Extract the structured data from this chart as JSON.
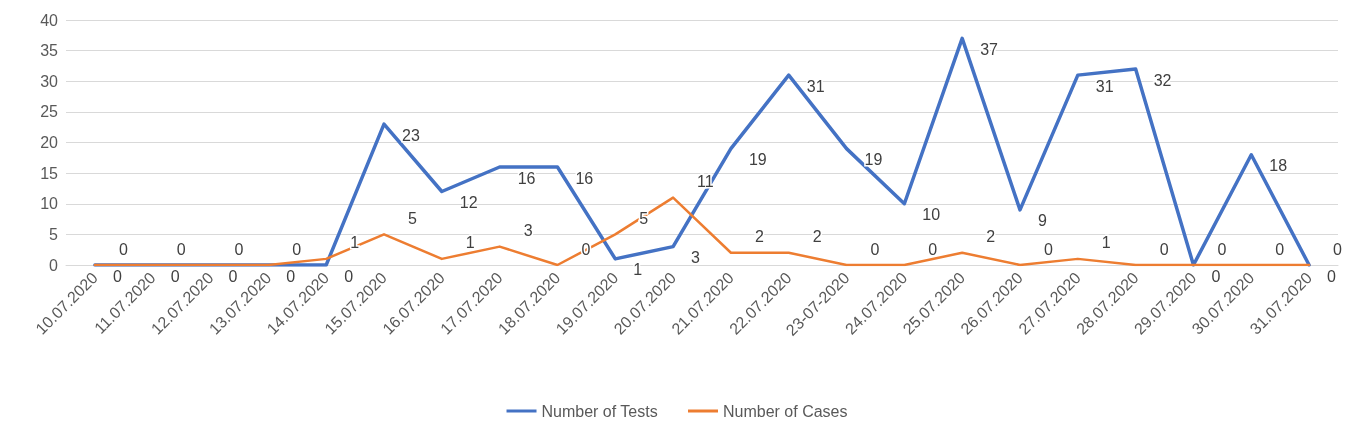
{
  "chart_data": {
    "type": "line",
    "categories": [
      "10.07.2020",
      "11.07.2020",
      "12.07.2020",
      "13.07.2020",
      "14.07.2020",
      "15.07.2020",
      "16.07.2020",
      "17.07.2020",
      "18.07.2020",
      "19.07.2020",
      "20.07.2020",
      "21.07.2020",
      "22.07.2020",
      "23-07-2020",
      "24.07.2020",
      "25.07.2020",
      "26.07.2020",
      "27.07.2020",
      "28.07.2020",
      "29.07.2020",
      "30.07.2020",
      "31.07.2020"
    ],
    "series": [
      {
        "name": "Number of Tests",
        "color": "#4472c4",
        "values": [
          0,
          0,
          0,
          0,
          0,
          23,
          12,
          16,
          16,
          1,
          3,
          19,
          31,
          19,
          10,
          37,
          9,
          31,
          32,
          0,
          18,
          0
        ]
      },
      {
        "name": "Number of Cases",
        "color": "#ed7d31",
        "values": [
          0,
          0,
          0,
          0,
          1,
          5,
          1,
          3,
          0,
          5,
          11,
          2,
          2,
          0,
          0,
          2,
          0,
          1,
          0,
          0,
          0,
          0
        ]
      }
    ],
    "ylim": [
      0,
      40
    ],
    "yticks": [
      0,
      5,
      10,
      15,
      20,
      25,
      30,
      35,
      40
    ],
    "grid": "y",
    "legend": "bottom",
    "data_labels": true,
    "marker": "none",
    "line_style": "solid"
  }
}
